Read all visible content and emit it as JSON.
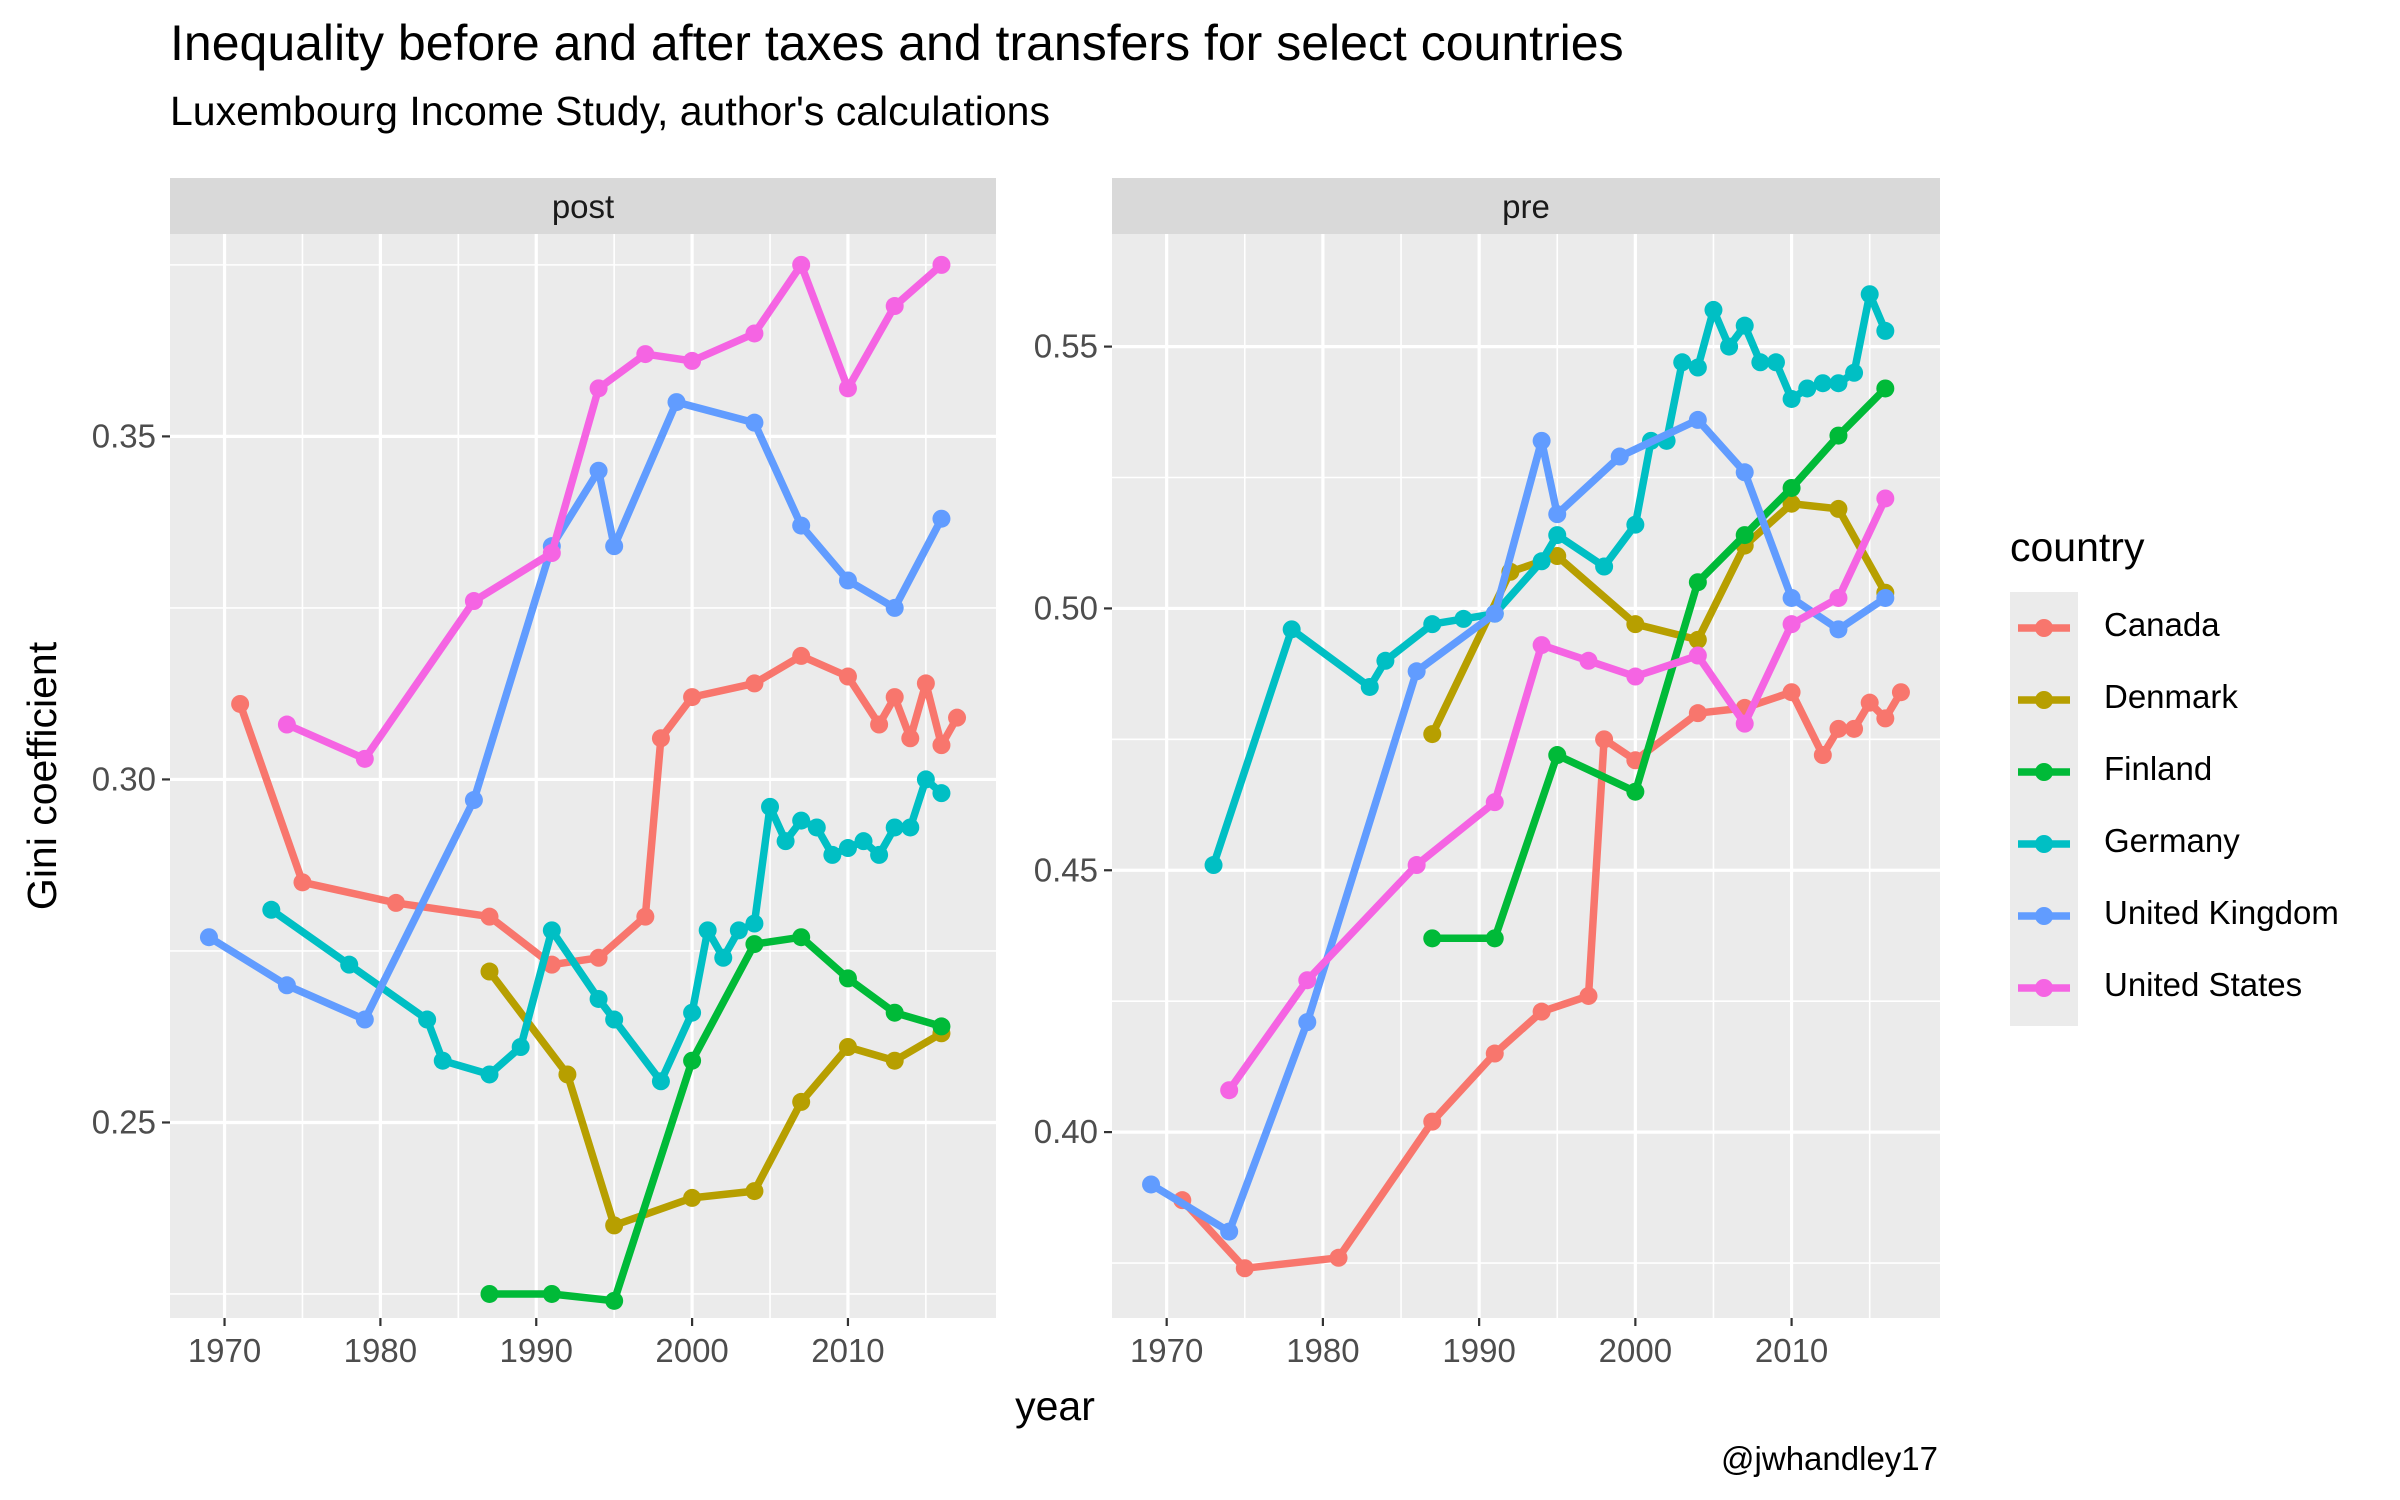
{
  "title": "Inequality before and after taxes and transfers for select countries",
  "subtitle": "Luxembourg Income Study, author's calculations",
  "caption": "@jwhandley17",
  "legend": {
    "title": "country"
  },
  "chart_data": {
    "type": "line",
    "xlabel": "year",
    "ylabel": "Gini coefficient",
    "facets": [
      {
        "name": "post",
        "xlim": [
          1966.5,
          2019.5
        ],
        "ylim": [
          0.2215,
          0.3795
        ],
        "xticks": [
          1970,
          1980,
          1990,
          2000,
          2010
        ],
        "yticks": [
          0.25,
          0.3,
          0.35
        ],
        "series": [
          {
            "name": "Canada",
            "color": "#F8766D",
            "x": [
              1971,
              1975,
              1981,
              1987,
              1991,
              1994,
              1997,
              1998,
              2000,
              2004,
              2007,
              2010,
              2012,
              2013,
              2014,
              2015,
              2016,
              2017
            ],
            "y": [
              0.311,
              0.285,
              0.282,
              0.28,
              0.273,
              0.274,
              0.28,
              0.306,
              0.312,
              0.314,
              0.318,
              0.315,
              0.308,
              0.312,
              0.306,
              0.314,
              0.305,
              0.309
            ]
          },
          {
            "name": "Denmark",
            "color": "#B79F00",
            "x": [
              1987,
              1992,
              1995,
              2000,
              2004,
              2007,
              2010,
              2013,
              2016
            ],
            "y": [
              0.272,
              0.257,
              0.235,
              0.239,
              0.24,
              0.253,
              0.261,
              0.259,
              0.263
            ]
          },
          {
            "name": "Finland",
            "color": "#00BA38",
            "x": [
              1987,
              1991,
              1995,
              2000,
              2004,
              2007,
              2010,
              2013,
              2016
            ],
            "y": [
              0.225,
              0.225,
              0.224,
              0.259,
              0.276,
              0.277,
              0.271,
              0.266,
              0.264
            ]
          },
          {
            "name": "Germany",
            "color": "#00BFC4",
            "x": [
              1973,
              1978,
              1983,
              1984,
              1987,
              1989,
              1991,
              1994,
              1995,
              1998,
              2000,
              2001,
              2002,
              2003,
              2004,
              2005,
              2006,
              2007,
              2008,
              2009,
              2010,
              2011,
              2012,
              2013,
              2014,
              2015,
              2016
            ],
            "y": [
              0.281,
              0.273,
              0.265,
              0.259,
              0.257,
              0.261,
              0.278,
              0.268,
              0.265,
              0.256,
              0.266,
              0.278,
              0.274,
              0.278,
              0.279,
              0.296,
              0.291,
              0.294,
              0.293,
              0.289,
              0.29,
              0.291,
              0.289,
              0.293,
              0.293,
              0.3,
              0.298
            ]
          },
          {
            "name": "United Kingdom",
            "color": "#619CFF",
            "x": [
              1969,
              1974,
              1979,
              1986,
              1991,
              1994,
              1995,
              1999,
              2004,
              2007,
              2010,
              2013,
              2016
            ],
            "y": [
              0.277,
              0.27,
              0.265,
              0.297,
              0.334,
              0.345,
              0.334,
              0.355,
              0.352,
              0.337,
              0.329,
              0.325,
              0.338
            ]
          },
          {
            "name": "United States",
            "color": "#F564E3",
            "x": [
              1974,
              1979,
              1986,
              1991,
              1994,
              1997,
              2000,
              2004,
              2007,
              2010,
              2013,
              2016
            ],
            "y": [
              0.308,
              0.303,
              0.326,
              0.333,
              0.357,
              0.362,
              0.361,
              0.365,
              0.375,
              0.357,
              0.369,
              0.375
            ]
          }
        ]
      },
      {
        "name": "pre",
        "xlim": [
          1966.5,
          2019.5
        ],
        "ylim": [
          0.3645,
          0.5715
        ],
        "xticks": [
          1970,
          1980,
          1990,
          2000,
          2010
        ],
        "yticks": [
          0.4,
          0.45,
          0.5,
          0.55
        ],
        "series": [
          {
            "name": "Canada",
            "color": "#F8766D",
            "x": [
              1971,
              1975,
              1981,
              1987,
              1991,
              1994,
              1997,
              1998,
              2000,
              2004,
              2007,
              2010,
              2012,
              2013,
              2014,
              2015,
              2016,
              2017
            ],
            "y": [
              0.387,
              0.374,
              0.376,
              0.402,
              0.415,
              0.423,
              0.426,
              0.475,
              0.471,
              0.48,
              0.481,
              0.484,
              0.472,
              0.477,
              0.477,
              0.482,
              0.479,
              0.484
            ]
          },
          {
            "name": "Denmark",
            "color": "#B79F00",
            "x": [
              1987,
              1992,
              1995,
              2000,
              2004,
              2007,
              2010,
              2013,
              2016
            ],
            "y": [
              0.476,
              0.507,
              0.51,
              0.497,
              0.494,
              0.512,
              0.52,
              0.519,
              0.503
            ]
          },
          {
            "name": "Finland",
            "color": "#00BA38",
            "x": [
              1987,
              1991,
              1995,
              2000,
              2004,
              2007,
              2010,
              2013,
              2016
            ],
            "y": [
              0.437,
              0.437,
              0.472,
              0.465,
              0.505,
              0.514,
              0.523,
              0.533,
              0.542
            ]
          },
          {
            "name": "Germany",
            "color": "#00BFC4",
            "x": [
              1973,
              1978,
              1983,
              1984,
              1987,
              1989,
              1991,
              1994,
              1995,
              1998,
              2000,
              2001,
              2002,
              2003,
              2004,
              2005,
              2006,
              2007,
              2008,
              2009,
              2010,
              2011,
              2012,
              2013,
              2014,
              2015,
              2016
            ],
            "y": [
              0.451,
              0.496,
              0.485,
              0.49,
              0.497,
              0.498,
              0.499,
              0.509,
              0.514,
              0.508,
              0.516,
              0.532,
              0.532,
              0.547,
              0.546,
              0.557,
              0.55,
              0.554,
              0.547,
              0.547,
              0.54,
              0.542,
              0.543,
              0.543,
              0.545,
              0.56,
              0.553
            ]
          },
          {
            "name": "United Kingdom",
            "color": "#619CFF",
            "x": [
              1969,
              1974,
              1979,
              1986,
              1991,
              1994,
              1995,
              1999,
              2004,
              2007,
              2010,
              2013,
              2016
            ],
            "y": [
              0.39,
              0.381,
              0.421,
              0.488,
              0.499,
              0.532,
              0.518,
              0.529,
              0.536,
              0.526,
              0.502,
              0.496,
              0.502
            ]
          },
          {
            "name": "United States",
            "color": "#F564E3",
            "x": [
              1974,
              1979,
              1986,
              1991,
              1994,
              1997,
              2000,
              2004,
              2007,
              2010,
              2013,
              2016
            ],
            "y": [
              0.408,
              0.429,
              0.451,
              0.463,
              0.493,
              0.49,
              0.487,
              0.491,
              0.478,
              0.497,
              0.502,
              0.521
            ]
          }
        ]
      }
    ]
  }
}
